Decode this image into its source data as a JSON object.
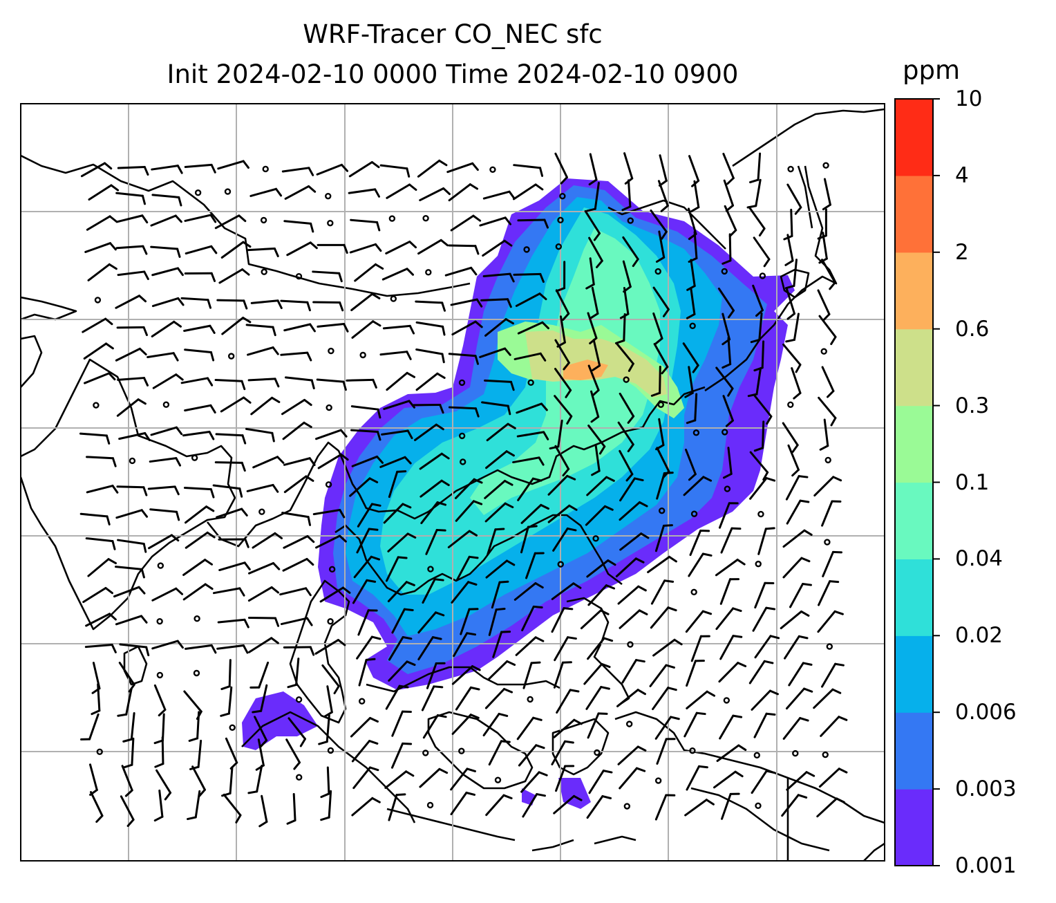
{
  "title": {
    "line1": "WRF-Tracer CO_NEC sfc",
    "line2": "Init 2024-02-10 0000 Time 2024-02-10 0900"
  },
  "colorbar": {
    "unit": "ppm",
    "ticks": [
      "0.001",
      "0.003",
      "0.006",
      "0.02",
      "0.04",
      "0.1",
      "0.3",
      "0.6",
      "2",
      "4",
      "10"
    ],
    "colors": [
      "#6a2cfb",
      "#3478f3",
      "#06b0eb",
      "#2fe0d9",
      "#69f9bf",
      "#9afa96",
      "#cde08a",
      "#fdb05c",
      "#ff7138",
      "#ff2c16"
    ]
  },
  "map": {
    "grid": true,
    "field": "CO_NEC tracer concentration",
    "overlay": "wind barbs"
  }
}
